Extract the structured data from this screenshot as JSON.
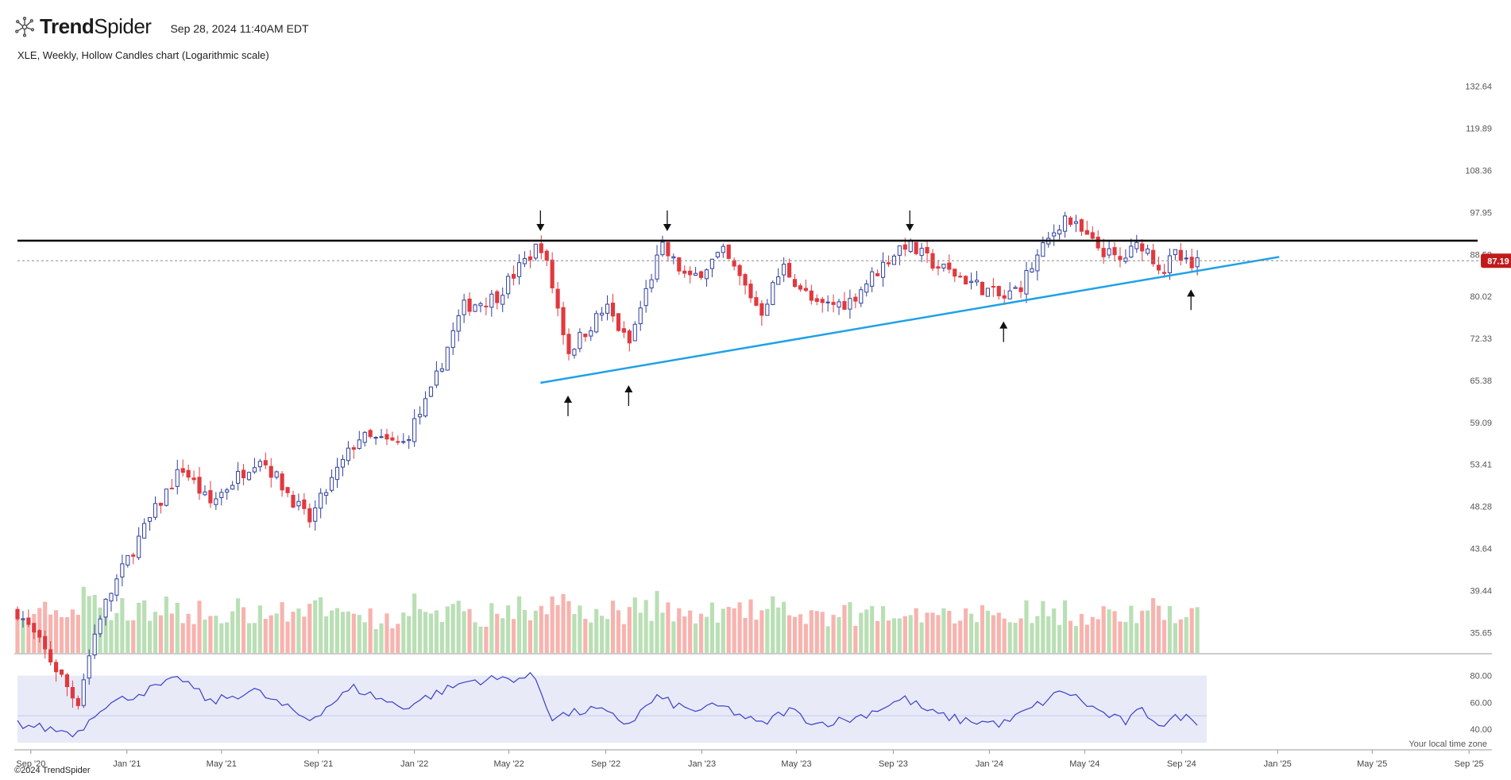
{
  "header": {
    "logo_text_bold": "Trend",
    "logo_text_light": "Spider",
    "timestamp": "Sep 28, 2024 11:40AM EDT"
  },
  "subtitle": "XLE, Weekly, Hollow Candles chart (Logarithmic scale)",
  "footer": "©2024 TrendSpider",
  "timezone_note": "Your local time zone",
  "colors": {
    "up": "#2f3f9e",
    "down": "#e0393e",
    "vol_up": "#b9dfb4",
    "vol_down": "#f7b3ae",
    "resistance": "#000000",
    "trendline": "#1ea1e8",
    "rsi_line": "#3b3fc7",
    "rsi_band": "#e8eaf8",
    "price_tag": "#c11a1a"
  },
  "chart_data": {
    "type": "candlestick",
    "symbol": "XLE",
    "interval": "Weekly",
    "scale": "log",
    "y_ticks": [
      "132.64",
      "119.89",
      "108.36",
      "97.95",
      "88.53",
      "80.02",
      "72.33",
      "65.38",
      "59.09",
      "53.41",
      "48.28",
      "43.64",
      "39.44",
      "35.65"
    ],
    "ylim": [
      34.2,
      138.0
    ],
    "x_ticks": [
      "Sep '20",
      "Jan '21",
      "May '21",
      "Sep '21",
      "Jan '22",
      "May '22",
      "Sep '22",
      "Jan '23",
      "May '23",
      "Sep '23",
      "Jan '24",
      "May '24",
      "Sep '24",
      "Jan '25",
      "May '25",
      "Sep '25"
    ],
    "x_tick_dates": [
      "2020-09-01",
      "2021-01-01",
      "2021-05-01",
      "2021-09-01",
      "2022-01-01",
      "2022-05-01",
      "2022-09-01",
      "2023-01-01",
      "2023-05-01",
      "2023-09-01",
      "2024-01-01",
      "2024-05-01",
      "2024-09-01",
      "2025-01-01",
      "2025-05-01",
      "2025-09-01"
    ],
    "x_range": [
      "2020-08-15",
      "2025-09-20"
    ],
    "current_price": "87.19",
    "close_anchors": [
      [
        "2020-08-15",
        37.5
      ],
      [
        "2020-10-30",
        30.0
      ],
      [
        "2020-11-27",
        37.0
      ],
      [
        "2021-01-15",
        44.5
      ],
      [
        "2021-03-12",
        53.0
      ],
      [
        "2021-04-16",
        48.5
      ],
      [
        "2021-06-18",
        54.5
      ],
      [
        "2021-08-20",
        46.5
      ],
      [
        "2021-10-22",
        57.0
      ],
      [
        "2021-12-17",
        56.0
      ],
      [
        "2022-01-21",
        63.0
      ],
      [
        "2022-03-04",
        78.0
      ],
      [
        "2022-04-15",
        80.0
      ],
      [
        "2022-06-10",
        91.0
      ],
      [
        "2022-07-15",
        70.0
      ],
      [
        "2022-09-02",
        78.0
      ],
      [
        "2022-09-30",
        71.0
      ],
      [
        "2022-11-11",
        90.0
      ],
      [
        "2022-12-16",
        83.0
      ],
      [
        "2023-01-27",
        89.0
      ],
      [
        "2023-03-17",
        77.0
      ],
      [
        "2023-04-14",
        86.0
      ],
      [
        "2023-05-26",
        78.0
      ],
      [
        "2023-07-07",
        79.0
      ],
      [
        "2023-09-15",
        91.0
      ],
      [
        "2023-10-27",
        86.0
      ],
      [
        "2023-11-24",
        84.0
      ],
      [
        "2024-01-19",
        79.5
      ],
      [
        "2024-02-09",
        82.0
      ],
      [
        "2024-04-05",
        97.0
      ],
      [
        "2024-05-10",
        91.0
      ],
      [
        "2024-06-14",
        87.0
      ],
      [
        "2024-07-12",
        91.0
      ],
      [
        "2024-08-09",
        85.0
      ],
      [
        "2024-08-23",
        88.5
      ],
      [
        "2024-09-13",
        85.5
      ],
      [
        "2024-09-27",
        87.19
      ]
    ],
    "volume_ylim": [
      0,
      100
    ],
    "rsi": {
      "ylim": [
        30,
        85
      ],
      "band": [
        30,
        80
      ],
      "midline": 50,
      "y_ticks": [
        "80.00",
        "60.00",
        "40.00"
      ],
      "anchors": [
        [
          "2020-08-15",
          44
        ],
        [
          "2020-10-30",
          37
        ],
        [
          "2020-11-27",
          56
        ],
        [
          "2021-01-08",
          65
        ],
        [
          "2021-03-12",
          78
        ],
        [
          "2021-04-16",
          60
        ],
        [
          "2021-06-11",
          69
        ],
        [
          "2021-08-20",
          47
        ],
        [
          "2021-10-15",
          71
        ],
        [
          "2021-12-17",
          56
        ],
        [
          "2022-01-21",
          65
        ],
        [
          "2022-03-11",
          76
        ],
        [
          "2022-06-03",
          79
        ],
        [
          "2022-06-24",
          49
        ],
        [
          "2022-08-19",
          55
        ],
        [
          "2022-09-30",
          44
        ],
        [
          "2022-11-04",
          64
        ],
        [
          "2022-12-16",
          54
        ],
        [
          "2023-01-27",
          57
        ],
        [
          "2023-03-17",
          43
        ],
        [
          "2023-04-21",
          55
        ],
        [
          "2023-05-26",
          44
        ],
        [
          "2023-07-14",
          48
        ],
        [
          "2023-09-15",
          63
        ],
        [
          "2023-10-20",
          52
        ],
        [
          "2023-11-24",
          47
        ],
        [
          "2024-01-19",
          44
        ],
        [
          "2024-04-05",
          69
        ],
        [
          "2024-05-17",
          54
        ],
        [
          "2024-06-21",
          45
        ],
        [
          "2024-07-12",
          54
        ],
        [
          "2024-08-09",
          43
        ],
        [
          "2024-08-30",
          50
        ],
        [
          "2024-09-27",
          45
        ]
      ]
    },
    "annotations": {
      "resistance_level": 91.5,
      "support_trendline": [
        [
          "2022-06-10",
          65.0
        ],
        [
          "2025-01-03",
          88.0
        ]
      ],
      "down_arrows": [
        "2022-06-10",
        "2022-11-18",
        "2023-09-22"
      ],
      "up_arrows": [
        "2022-07-15",
        "2022-09-30",
        "2024-01-19",
        "2024-09-13"
      ]
    }
  }
}
